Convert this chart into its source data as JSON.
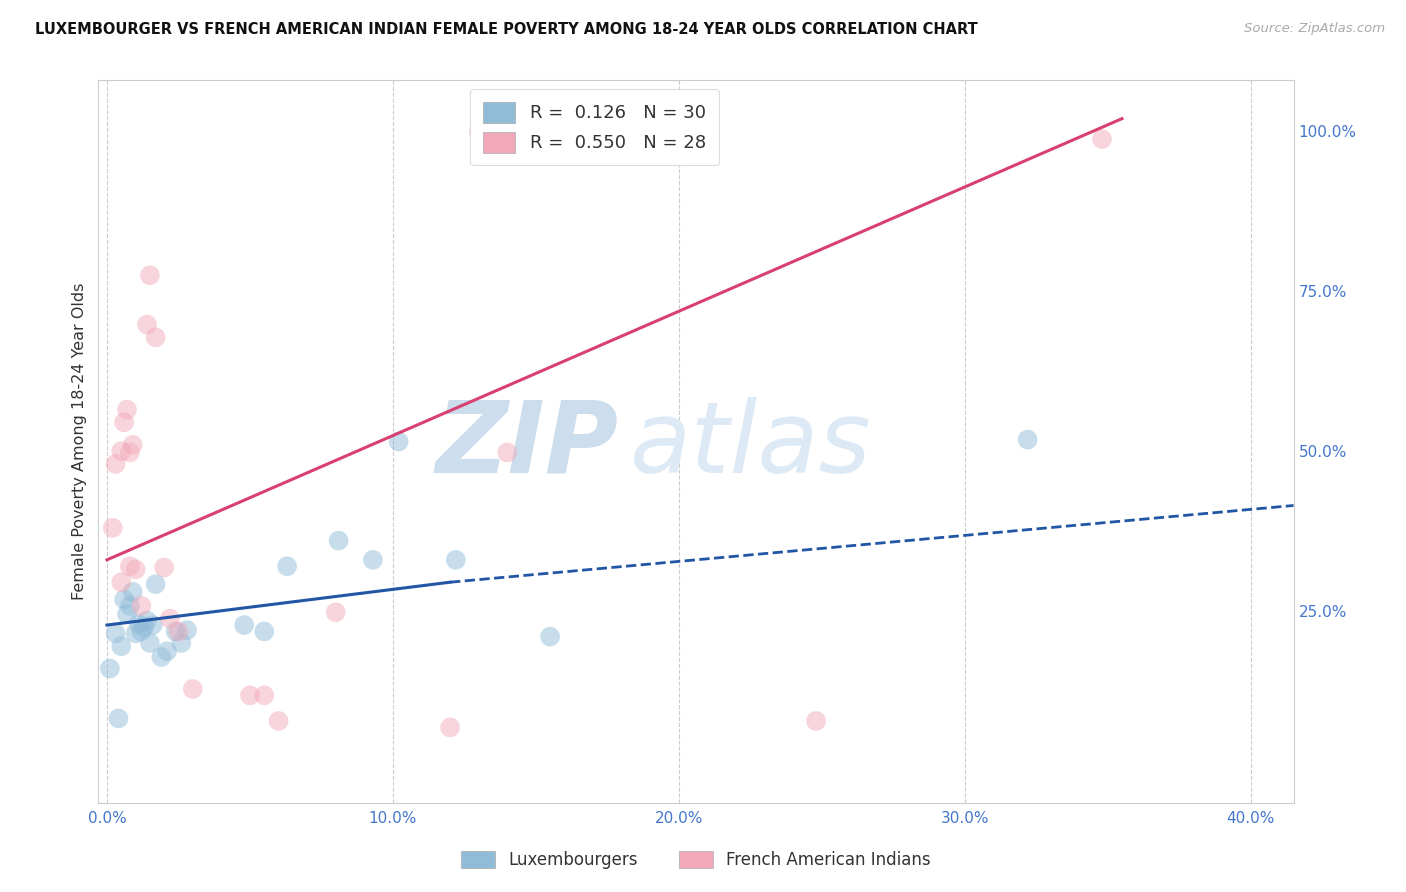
{
  "title": "LUXEMBOURGER VS FRENCH AMERICAN INDIAN FEMALE POVERTY AMONG 18-24 YEAR OLDS CORRELATION CHART",
  "source": "Source: ZipAtlas.com",
  "ylabel": "Female Poverty Among 18-24 Year Olds",
  "xlabel_ticks": [
    "0.0%",
    "10.0%",
    "20.0%",
    "30.0%",
    "40.0%"
  ],
  "xlabel_vals": [
    0.0,
    0.1,
    0.2,
    0.3,
    0.4
  ],
  "ylabel_right_ticks": [
    "100.0%",
    "75.0%",
    "50.0%",
    "25.0%"
  ],
  "ylabel_right_vals": [
    1.0,
    0.75,
    0.5,
    0.25
  ],
  "xlim": [
    -0.003,
    0.415
  ],
  "ylim": [
    -0.05,
    1.08
  ],
  "R_blue": 0.126,
  "N_blue": 30,
  "R_pink": 0.55,
  "N_pink": 28,
  "blue_scatter_x": [
    0.001,
    0.003,
    0.004,
    0.005,
    0.006,
    0.007,
    0.008,
    0.009,
    0.01,
    0.011,
    0.012,
    0.013,
    0.014,
    0.015,
    0.016,
    0.017,
    0.019,
    0.021,
    0.024,
    0.026,
    0.028,
    0.048,
    0.055,
    0.063,
    0.081,
    0.093,
    0.102,
    0.122,
    0.155,
    0.322
  ],
  "blue_scatter_y": [
    0.16,
    0.215,
    0.082,
    0.195,
    0.268,
    0.245,
    0.258,
    0.28,
    0.215,
    0.23,
    0.218,
    0.225,
    0.235,
    0.2,
    0.228,
    0.292,
    0.178,
    0.187,
    0.218,
    0.2,
    0.22,
    0.228,
    0.218,
    0.32,
    0.36,
    0.33,
    0.515,
    0.33,
    0.21,
    0.518
  ],
  "pink_scatter_x": [
    0.002,
    0.003,
    0.005,
    0.005,
    0.006,
    0.007,
    0.008,
    0.008,
    0.009,
    0.01,
    0.012,
    0.014,
    0.015,
    0.017,
    0.02,
    0.022,
    0.025,
    0.03,
    0.05,
    0.055,
    0.06,
    0.08,
    0.12,
    0.13,
    0.14,
    0.15,
    0.248,
    0.348
  ],
  "pink_scatter_y": [
    0.38,
    0.48,
    0.5,
    0.295,
    0.545,
    0.565,
    0.32,
    0.498,
    0.51,
    0.315,
    0.258,
    0.698,
    0.775,
    0.678,
    0.318,
    0.238,
    0.218,
    0.128,
    0.118,
    0.118,
    0.078,
    0.248,
    0.068,
    1.0,
    0.498,
    1.0,
    0.078,
    0.988
  ],
  "blue_solid_line_x": [
    0.0,
    0.12
  ],
  "blue_solid_line_y": [
    0.228,
    0.295
  ],
  "blue_dashed_line_x": [
    0.12,
    0.415
  ],
  "blue_dashed_line_y": [
    0.295,
    0.415
  ],
  "pink_solid_line_x": [
    0.0,
    0.355
  ],
  "pink_solid_line_y": [
    0.33,
    1.02
  ],
  "scatter_alpha": 0.5,
  "scatter_size": 200,
  "blue_color": "#90bcd8",
  "pink_color": "#f2aaba",
  "blue_line_color": "#2255a4",
  "pink_line_color": "#d84070",
  "legend_blue_label": "Luxembourgers",
  "legend_pink_label": "French American Indians",
  "grid_color": "#cccccc",
  "background_color": "#ffffff"
}
